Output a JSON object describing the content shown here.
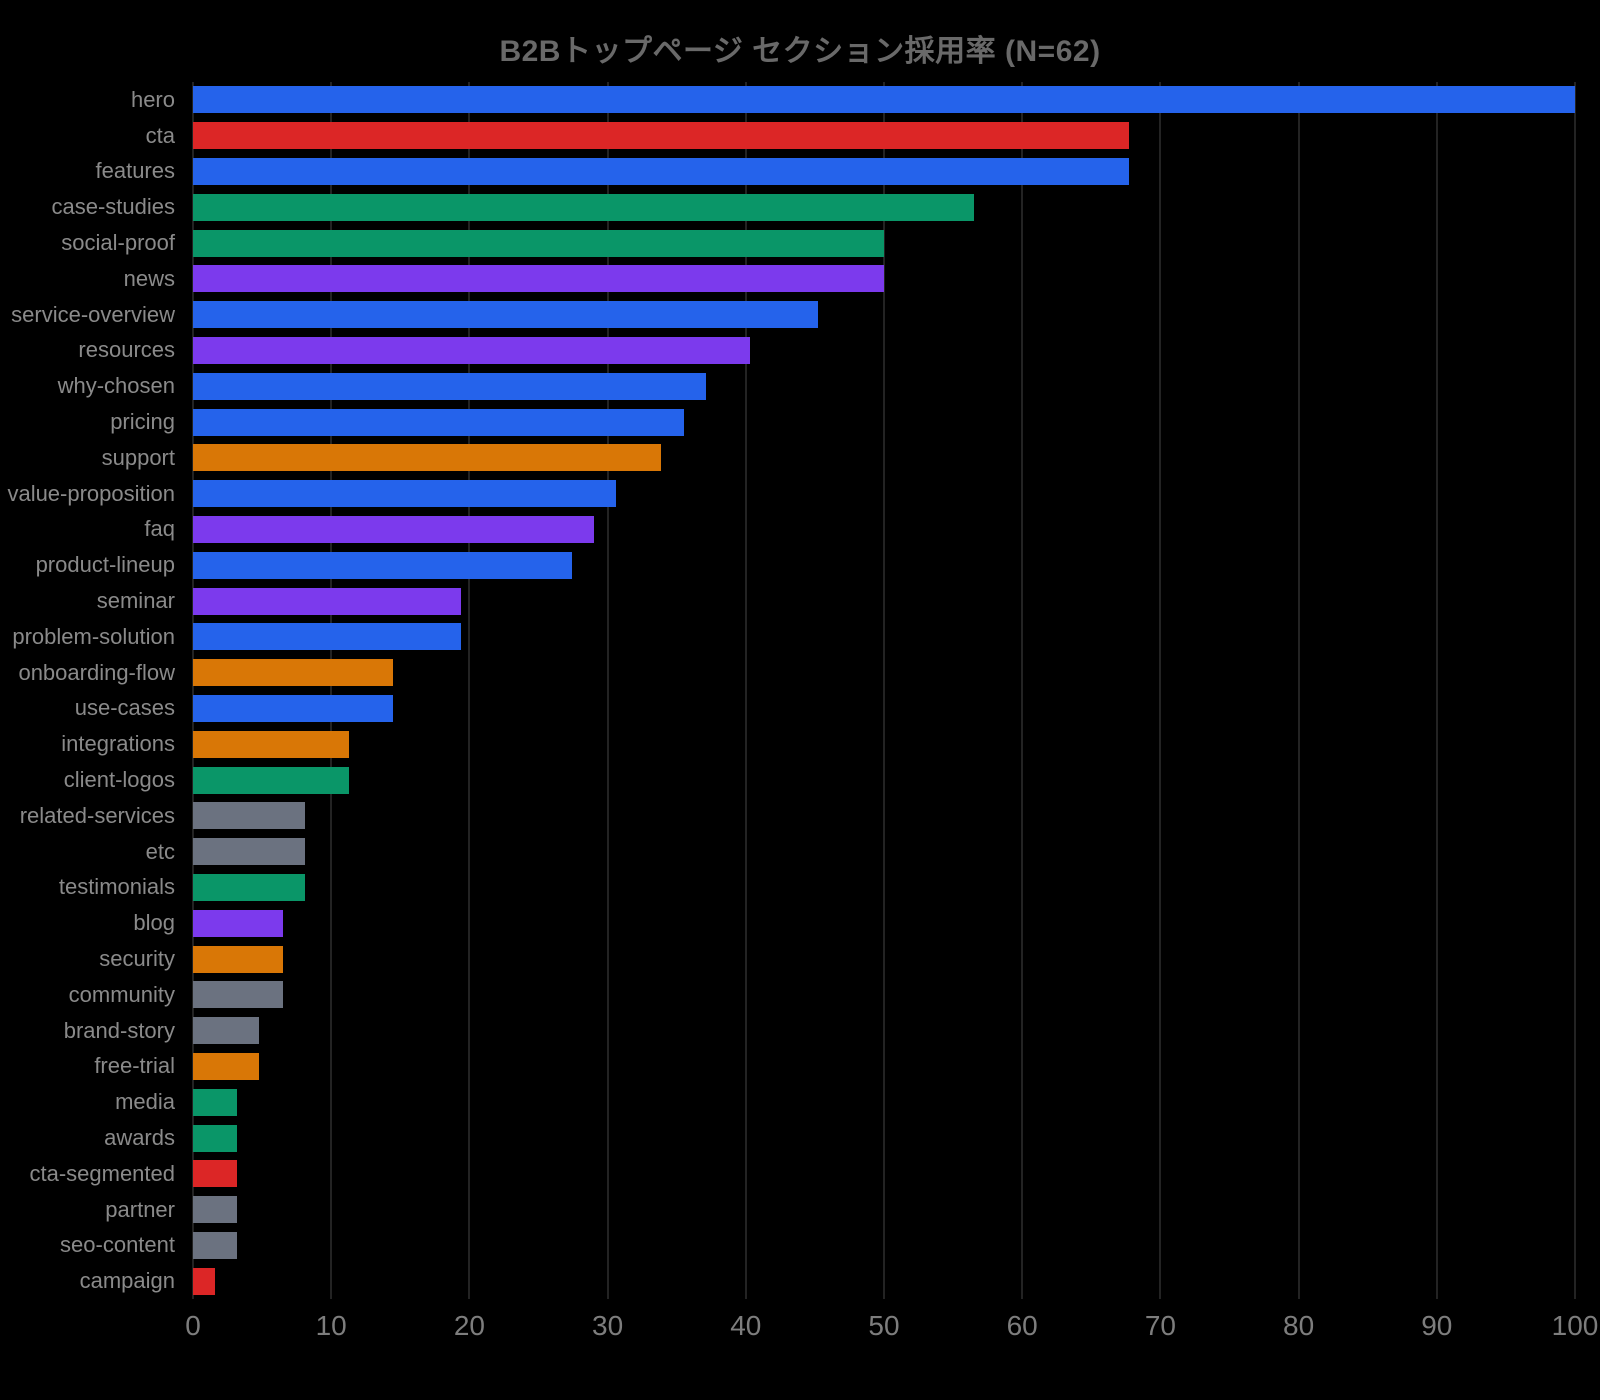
{
  "figure": {
    "background_color": "#000000",
    "title_color": "#696969",
    "category_label_color": "#8a8a8a",
    "tick_label_color": "#7d7d7d",
    "gridline_color": "#232323"
  },
  "chart_data": {
    "type": "bar",
    "orientation": "horizontal",
    "title": "B2Bトップページ セクション採用率 (N=62)",
    "sample_size_label": "N=62",
    "xlabel": "",
    "ylabel": "",
    "xlim": [
      0,
      100
    ],
    "x_ticks": [
      0,
      10,
      20,
      30,
      40,
      50,
      60,
      70,
      80,
      90,
      100
    ],
    "grid": true,
    "legend": false,
    "categories": [
      "hero",
      "cta",
      "features",
      "case-studies",
      "social-proof",
      "news",
      "service-overview",
      "resources",
      "why-chosen",
      "pricing",
      "support",
      "value-proposition",
      "faq",
      "product-lineup",
      "seminar",
      "problem-solution",
      "onboarding-flow",
      "use-cases",
      "integrations",
      "client-logos",
      "related-services",
      "etc",
      "testimonials",
      "blog",
      "security",
      "community",
      "brand-story",
      "free-trial",
      "media",
      "awards",
      "cta-segmented",
      "partner",
      "seo-content",
      "campaign"
    ],
    "values": [
      100.0,
      67.7,
      67.7,
      56.5,
      50.0,
      50.0,
      45.2,
      40.3,
      37.1,
      35.5,
      33.9,
      30.6,
      29.0,
      27.4,
      19.4,
      19.4,
      14.5,
      14.5,
      11.3,
      11.3,
      8.1,
      8.1,
      8.1,
      6.5,
      6.5,
      6.5,
      4.8,
      4.8,
      3.2,
      3.2,
      3.2,
      3.2,
      3.2,
      1.6
    ],
    "palette": {
      "blue": "#2563EB",
      "red": "#DC2626",
      "green": "#0A9668",
      "purple": "#7C3AED",
      "orange": "#D97706",
      "gray": "#6B7280"
    },
    "bar_color_names": [
      "blue",
      "red",
      "blue",
      "green",
      "green",
      "purple",
      "blue",
      "purple",
      "blue",
      "blue",
      "orange",
      "blue",
      "purple",
      "blue",
      "purple",
      "blue",
      "orange",
      "blue",
      "orange",
      "green",
      "gray",
      "gray",
      "green",
      "purple",
      "orange",
      "gray",
      "gray",
      "orange",
      "green",
      "green",
      "red",
      "gray",
      "gray",
      "red"
    ]
  }
}
